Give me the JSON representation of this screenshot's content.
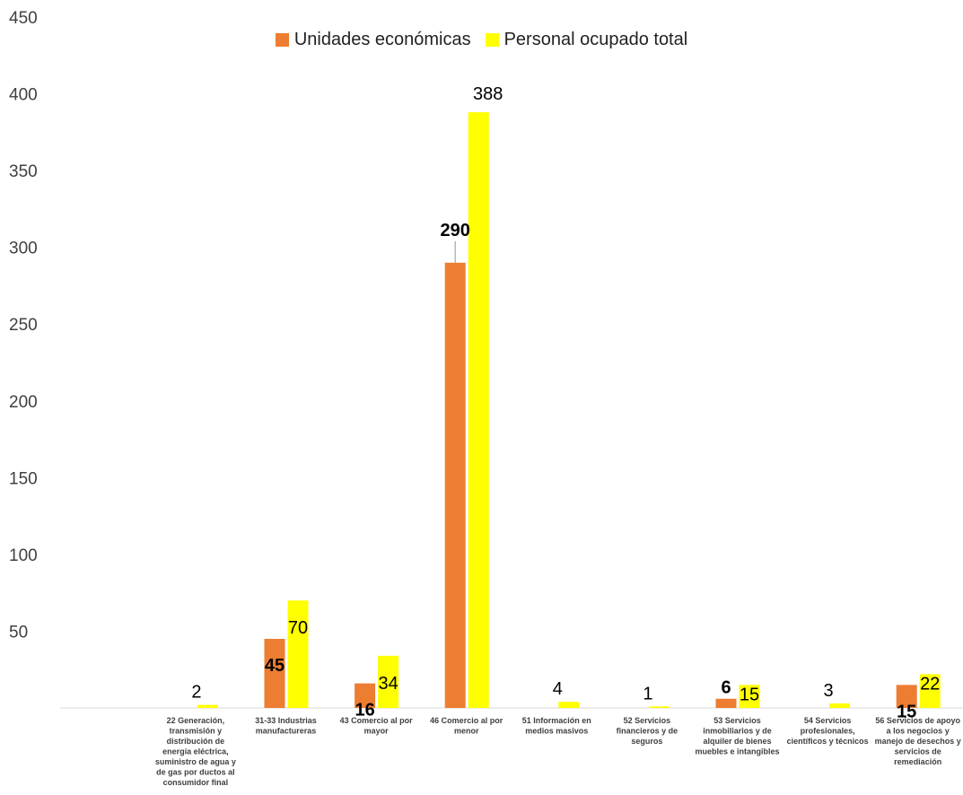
{
  "chart_data": {
    "type": "bar",
    "categories": [
      "",
      "22 Generación, transmisión y distribución de energía eléctrica, suministro de agua y de gas por ductos al consumidor final",
      "31-33 Industrias manufactureras",
      "43 Comercio al por mayor",
      "46 Comercio al por menor",
      "51 Información en medios masivos",
      "52 Servicios financieros y de seguros",
      "53 Servicios inmobiliarios y de alquiler de bienes muebles e intangibles",
      "54 Servicios profesionales, científicos y técnicos",
      "56 Servicios de apoyo a los negocios y manejo de desechos y servicios de remediación"
    ],
    "category_lines": [
      [],
      [
        "22 Generación,",
        "transmisión y",
        "distribución de",
        "energía eléctrica,",
        "suministro de agua y",
        "de gas por ductos al",
        "consumidor final"
      ],
      [
        "31-33 Industrias",
        "manufactureras"
      ],
      [
        "43 Comercio al por",
        "mayor"
      ],
      [
        "46 Comercio al por",
        "menor"
      ],
      [
        "51 Información en",
        "medios masivos"
      ],
      [
        "52 Servicios",
        "financieros y de",
        "seguros"
      ],
      [
        "53 Servicios",
        "inmobiliarios y de",
        "alquiler de bienes",
        "muebles e intangibles"
      ],
      [
        "54 Servicios",
        "profesionales,",
        "científicos y técnicos"
      ],
      [
        "56 Servicios de apoyo",
        "a los negocios y",
        "manejo de desechos y",
        "servicios de",
        "remediación"
      ]
    ],
    "series": [
      {
        "name": "Unidades económicas",
        "color": "#ED7D31",
        "values": [
          null,
          0,
          45,
          16,
          290,
          0,
          0,
          6,
          0,
          15
        ],
        "labels": [
          "",
          "",
          "45",
          "16",
          "290",
          "",
          "",
          "6",
          "",
          "15"
        ]
      },
      {
        "name": "Personal ocupado total",
        "color": "#FFFF00",
        "values": [
          null,
          2,
          70,
          34,
          388,
          4,
          1,
          15,
          3,
          22
        ],
        "labels": [
          "",
          "2",
          "70",
          "34",
          "388",
          "4",
          "1",
          "15",
          "3",
          "22"
        ]
      }
    ],
    "y_ticks": [
      "50",
      "100",
      "150",
      "200",
      "250",
      "300",
      "350",
      "400",
      "450"
    ],
    "ylim": [
      0,
      450
    ],
    "legend_position": "top",
    "grid": false
  }
}
